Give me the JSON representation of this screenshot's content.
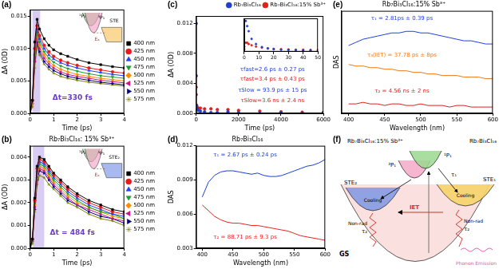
{
  "chart_data": [
    {
      "type": "line",
      "panel_label": "(a)",
      "xlabel": "Time (ps)",
      "ylabel": "ΔA (OD)",
      "x": [
        0,
        0.1,
        0.2,
        0.3,
        0.4,
        0.6,
        0.8,
        1.0,
        1.3,
        1.6,
        2.0,
        2.5,
        3.0,
        3.5,
        4.0
      ],
      "xlim": [
        0,
        4
      ],
      "xticks": [
        0,
        1,
        2,
        3,
        4
      ],
      "ylim": [
        0,
        0.016
      ],
      "yticks": [
        {
          "value": 0,
          "label": "0.000"
        },
        0.005,
        {
          "value": 0.01,
          "label": "0.010"
        },
        0.015
      ],
      "grid": false,
      "legend": "right",
      "shaded": {
        "x": [
          0.1,
          0.43
        ],
        "color": "#b49ae6"
      },
      "annotations": [
        {
          "text": "Δt=330 fs",
          "color": "#6a3cc0"
        }
      ],
      "inset_labels": [
        {
          "text": "¹P₁",
          "color": "#8fcf7f"
        },
        {
          "text": "³P₁",
          "color": "#f29cc4"
        },
        {
          "text": "STE",
          "color": "#f5b942"
        },
        {
          "text": "Eₐ",
          "color": "#c0392b"
        }
      ],
      "series": [
        {
          "name": "400 nm",
          "color": "#000000",
          "marker": "square",
          "values": [
            0,
            0.002,
            0.011,
            0.0145,
            0.013,
            0.0115,
            0.0105,
            0.0098,
            0.0092,
            0.0088,
            0.0083,
            0.0078,
            0.0075,
            0.0072,
            0.007
          ]
        },
        {
          "name": "425 nm",
          "color": "#e41a1c",
          "marker": "circle",
          "values": [
            0,
            0.002,
            0.01,
            0.0135,
            0.012,
            0.0105,
            0.0095,
            0.0088,
            0.0082,
            0.0078,
            0.0074,
            0.007,
            0.0067,
            0.0064,
            0.0062
          ]
        },
        {
          "name": "450 nm",
          "color": "#1f3fff",
          "marker": "triangle",
          "values": [
            0,
            0.002,
            0.01,
            0.013,
            0.0115,
            0.01,
            0.009,
            0.0084,
            0.0078,
            0.0074,
            0.007,
            0.0066,
            0.0063,
            0.006,
            0.0058
          ]
        },
        {
          "name": "475 nm",
          "color": "#1a9e2a",
          "marker": "triangle_down",
          "values": [
            0,
            0.002,
            0.009,
            0.0125,
            0.011,
            0.0095,
            0.0085,
            0.0079,
            0.0073,
            0.0069,
            0.0065,
            0.0061,
            0.0058,
            0.0056,
            0.0054
          ]
        },
        {
          "name": "500 nm",
          "color": "#ff8c00",
          "marker": "diamond",
          "values": [
            0,
            0.0015,
            0.009,
            0.012,
            0.0105,
            0.009,
            0.008,
            0.0074,
            0.0068,
            0.0064,
            0.006,
            0.0057,
            0.0054,
            0.0052,
            0.005
          ]
        },
        {
          "name": "525 nm",
          "color": "#c71585",
          "marker": "triangle_left",
          "values": [
            0,
            0.0015,
            0.008,
            0.0115,
            0.01,
            0.0085,
            0.0076,
            0.007,
            0.0064,
            0.006,
            0.0057,
            0.0054,
            0.0051,
            0.0049,
            0.0047
          ]
        },
        {
          "name": "550 nm",
          "color": "#000080",
          "marker": "triangle_right",
          "values": [
            0,
            0.0015,
            0.008,
            0.011,
            0.0095,
            0.008,
            0.0072,
            0.0066,
            0.0061,
            0.0057,
            0.0054,
            0.0051,
            0.0048,
            0.0046,
            0.0044
          ]
        },
        {
          "name": "575 nm",
          "color": "#808000",
          "marker": "star",
          "values": [
            0,
            0.001,
            0.007,
            0.0105,
            0.009,
            0.0076,
            0.0068,
            0.0062,
            0.0057,
            0.0054,
            0.0051,
            0.0048,
            0.0046,
            0.0044,
            0.0042
          ]
        }
      ]
    },
    {
      "type": "line",
      "panel_label": "(b)",
      "title": "Rb₇Bi₃Cl₁₆: 15% Sb³⁺",
      "xlabel": "Time (ps)",
      "ylabel": "ΔA (OD)",
      "x": [
        0,
        0.1,
        0.2,
        0.3,
        0.4,
        0.6,
        0.8,
        1.0,
        1.3,
        1.6,
        2.0,
        2.5,
        3.0,
        3.5,
        4.0
      ],
      "xlim": [
        0,
        4
      ],
      "xticks": [
        0,
        1,
        2,
        3,
        4
      ],
      "ylim": [
        0,
        0.0045
      ],
      "yticks": [
        {
          "value": 0,
          "label": "0.000"
        },
        0.001,
        0.002,
        0.003,
        0.004
      ],
      "grid": false,
      "legend": "right",
      "shaded": {
        "x": [
          0.12,
          0.6
        ],
        "color": "#b49ae6"
      },
      "annotations": [
        {
          "text": "Δt = 484 fs",
          "color": "#6a3cc0"
        }
      ],
      "inset_labels": [
        {
          "text": "¹P₁",
          "color": "#8fcf7f"
        },
        {
          "text": "³P₁",
          "color": "#f29cc4"
        },
        {
          "text": "STE₂",
          "color": "#5f7fe0"
        },
        {
          "text": "Eₐ",
          "color": "#c0392b"
        }
      ],
      "series": [
        {
          "name": "400 nm",
          "color": "#000000",
          "marker": "square",
          "values": [
            0,
            0.0004,
            0.0022,
            0.0036,
            0.004,
            0.0039,
            0.0036,
            0.0033,
            0.003,
            0.0027,
            0.0024,
            0.0021,
            0.0019,
            0.0017,
            0.0016
          ]
        },
        {
          "name": "425 nm",
          "color": "#e41a1c",
          "marker": "circle",
          "values": [
            0,
            0.0004,
            0.0021,
            0.0035,
            0.0039,
            0.0038,
            0.0035,
            0.0032,
            0.0029,
            0.0026,
            0.0023,
            0.002,
            0.0018,
            0.0016,
            0.0015
          ]
        },
        {
          "name": "450 nm",
          "color": "#1f3fff",
          "marker": "triangle",
          "values": [
            0,
            0.0004,
            0.0021,
            0.0034,
            0.0038,
            0.0037,
            0.0034,
            0.0031,
            0.0028,
            0.0025,
            0.0022,
            0.0019,
            0.0017,
            0.0015,
            0.0014
          ]
        },
        {
          "name": "475 nm",
          "color": "#1a9e2a",
          "marker": "triangle_down",
          "values": [
            0,
            0.0003,
            0.002,
            0.0033,
            0.0037,
            0.0036,
            0.0033,
            0.003,
            0.0027,
            0.0024,
            0.0021,
            0.0018,
            0.0016,
            0.0015,
            0.0013
          ]
        },
        {
          "name": "500 nm",
          "color": "#ff8c00",
          "marker": "diamond",
          "values": [
            0,
            0.0003,
            0.0019,
            0.0032,
            0.0036,
            0.0035,
            0.0032,
            0.0029,
            0.0026,
            0.0023,
            0.002,
            0.0018,
            0.0016,
            0.0014,
            0.0013
          ]
        },
        {
          "name": "525 nm",
          "color": "#c71585",
          "marker": "triangle_left",
          "values": [
            0,
            0.0003,
            0.0018,
            0.0031,
            0.0035,
            0.0034,
            0.0031,
            0.0028,
            0.0025,
            0.0022,
            0.0019,
            0.0017,
            0.0015,
            0.0013,
            0.0012
          ]
        },
        {
          "name": "550 nm",
          "color": "#000080",
          "marker": "triangle_right",
          "values": [
            0,
            0.0003,
            0.0017,
            0.003,
            0.0034,
            0.0033,
            0.003,
            0.0027,
            0.0024,
            0.0021,
            0.0019,
            0.0016,
            0.0014,
            0.0013,
            0.0011
          ]
        },
        {
          "name": "575 nm",
          "color": "#808000",
          "marker": "star",
          "values": [
            0,
            0.0002,
            0.0016,
            0.0028,
            0.0032,
            0.0031,
            0.0028,
            0.0026,
            0.0023,
            0.002,
            0.0018,
            0.0015,
            0.0013,
            0.0012,
            0.001
          ]
        }
      ]
    },
    {
      "type": "scatter",
      "panel_label": "(c)",
      "xlabel": "Time (ps)",
      "ylabel": "ΔA (OD)",
      "x": [
        1,
        5,
        20,
        50,
        100,
        200,
        400,
        700,
        1000,
        1500,
        2000,
        3000,
        4000,
        5000,
        6000
      ],
      "xlim": [
        0,
        6000
      ],
      "xticks": [
        0,
        2000,
        4000,
        6000
      ],
      "ylim": [
        0,
        0.013
      ],
      "yticks": [
        {
          "value": 0,
          "label": "0.000"
        },
        0.004,
        0.008,
        0.012
      ],
      "grid": false,
      "legend": "top",
      "annotations": [
        {
          "text": "τfast=2.6 ps ± 0.27 ps",
          "color": "#1f3fcf"
        },
        {
          "text": "τfast=3.4 ps ± 0.43 ps",
          "color": "#e0201b"
        },
        {
          "text": "τSlow = 93.9 ps ± 15 ps",
          "color": "#1f3fcf"
        },
        {
          "text": "τSlow=3.6 ns ± 2.4 ns",
          "color": "#e0201b"
        }
      ],
      "series": [
        {
          "name": "Rb₇Bi₃Cl₁₆",
          "color": "#1f3fcf",
          "marker": "circle",
          "values": [
            0.012,
            0.005,
            0.001,
            0.0006,
            0.0004,
            0.0003,
            0.0002,
            0.0001,
            0.0001,
            0.0002,
            0.0001,
            0,
            0.0001,
            0,
            0.0001
          ]
        },
        {
          "name": "Rb₇Bi₃Cl₁₆:15% Sb³⁺",
          "color": "#e0201b",
          "marker": "circle",
          "values": [
            0.0035,
            0.0025,
            0.0011,
            0.0008,
            0.0007,
            0.0007,
            0.0006,
            0.0006,
            0.0005,
            0.0005,
            0.0004,
            0.0003,
            0.0002,
            0.00015,
            0.0001
          ]
        }
      ],
      "inset": {
        "type": "scatter",
        "x": [
          0,
          1,
          2,
          3,
          5,
          8,
          12,
          16,
          20,
          25,
          30,
          35,
          40,
          45,
          50
        ],
        "xlim": [
          0,
          50
        ],
        "xticks": [
          0,
          10,
          20,
          30,
          40,
          50
        ],
        "ylim": [
          0,
          0.013
        ],
        "tick_labels": "x",
        "grid": false,
        "series": [
          {
            "color": "#1f3fcf",
            "marker": "circle",
            "values": [
              0.002,
              0.012,
              0.01,
              0.008,
              0.005,
              0.003,
              0.0018,
              0.0013,
              0.001,
              0.0008,
              0.0007,
              0.0006,
              0.0005,
              0.0005,
              0.0004
            ]
          },
          {
            "color": "#e0201b",
            "marker": "circle",
            "values": [
              0.001,
              0.0035,
              0.0035,
              0.003,
              0.0025,
              0.002,
              0.0016,
              0.0013,
              0.0011,
              0.001,
              0.0009,
              0.0008,
              0.0008,
              0.0007,
              0.0007
            ]
          }
        ]
      }
    },
    {
      "type": "line",
      "panel_label": "(d)",
      "title": "Rb₇Bi₃Cl₁₆",
      "xlabel": "Wavelength (nm)",
      "ylabel": "DAS",
      "x": [
        400,
        410,
        420,
        430,
        440,
        450,
        460,
        470,
        480,
        490,
        500,
        510,
        520,
        530,
        540,
        550,
        560,
        570,
        580,
        590,
        600
      ],
      "xlim": [
        390,
        600
      ],
      "xticks": [
        400,
        450,
        500,
        550,
        600
      ],
      "ylim": [
        0.003,
        0.012
      ],
      "yticks": [
        0.003,
        0.006,
        0.009,
        0.012
      ],
      "grid": false,
      "annotations": [
        {
          "text": "τ₁ = 2.67 ps ± 0.24 ps",
          "color": "#1a3fd6"
        },
        {
          "text": "τ₂ = 88.71 ps ± 9.3 ps",
          "color": "#e8231d"
        }
      ],
      "series": [
        {
          "name": "τ₁",
          "color": "#1a3fd6",
          "line_style": "solid",
          "values": [
            0.0075,
            0.0088,
            0.0094,
            0.0097,
            0.0098,
            0.0098,
            0.0097,
            0.0096,
            0.0095,
            0.0096,
            0.0094,
            0.0093,
            0.0093,
            0.0094,
            0.0096,
            0.0098,
            0.01,
            0.0102,
            0.0103,
            0.0105,
            0.0108
          ]
        },
        {
          "name": "τ₂",
          "color": "#e8231d",
          "line_style": "solid",
          "values": [
            0.0068,
            0.0063,
            0.0058,
            0.0055,
            0.0053,
            0.0052,
            0.0052,
            0.0051,
            0.005,
            0.005,
            0.0049,
            0.0048,
            0.0047,
            0.0046,
            0.0045,
            0.0043,
            0.0041,
            0.004,
            0.0039,
            0.0038,
            0.0037
          ]
        }
      ]
    },
    {
      "type": "line",
      "panel_label": "(e)",
      "title": "Rb₇Bi₃Cl₁₆:15% Sb³⁺",
      "xlabel": "Wavelength (nm)",
      "ylabel": "DAS",
      "x": [
        400,
        410,
        420,
        430,
        440,
        450,
        460,
        470,
        480,
        490,
        500,
        510,
        520,
        530,
        540,
        550,
        560,
        570,
        580,
        590,
        600
      ],
      "xlim": [
        390,
        600
      ],
      "xticks": [
        400,
        450,
        500,
        550,
        600
      ],
      "ylim": [
        0,
        0.0065
      ],
      "tick_labels": "x",
      "grid": false,
      "annotations": [
        {
          "text": "τ₁ = 2.81ps ± 0.39 ps",
          "color": "#2040e0"
        },
        {
          "text": "τ₃(IET) = 37.78 ps ± 8ps",
          "color": "#f07a1a"
        },
        {
          "text": "τ₂ = 4.56 ns ± 2 ns",
          "color": "#e02020"
        }
      ],
      "series": [
        {
          "name": "τ₁",
          "color": "#2040e0",
          "line_style": "solid",
          "values": [
            0.0043,
            0.0045,
            0.0047,
            0.0048,
            0.0049,
            0.005,
            0.0051,
            0.0051,
            0.0052,
            0.0052,
            0.0051,
            0.0051,
            0.005,
            0.0049,
            0.0048,
            0.0047,
            0.0046,
            0.0046,
            0.0045,
            0.0044,
            0.0044
          ]
        },
        {
          "name": "τ₃(IET)",
          "color": "#f07a1a",
          "line_style": "solid",
          "values": [
            0.0031,
            0.003,
            0.003,
            0.0029,
            0.0029,
            0.0028,
            0.0028,
            0.0027,
            0.0027,
            0.0026,
            0.0026,
            0.0025,
            0.0025,
            0.0024,
            0.0024,
            0.0024,
            0.0023,
            0.0023,
            0.0023,
            0.0022,
            0.0022
          ]
        },
        {
          "name": "τ₂",
          "color": "#e02020",
          "line_style": "solid",
          "values": [
            0.0006,
            0.0006,
            0.0007,
            0.0006,
            0.0006,
            0.0005,
            0.0006,
            0.0006,
            0.0005,
            0.0005,
            0.0006,
            0.0005,
            0.0005,
            0.0005,
            0.0004,
            0.0005,
            0.0005,
            0.0004,
            0.0004,
            0.0004,
            0.0004
          ]
        }
      ]
    }
  ],
  "diagram": {
    "panel_label": "(f)",
    "left_title": "Rb₇Bi₃Cl₁₆:15% Sb³⁺",
    "right_title": "Rb₇Bi₃Cl₁₆",
    "singlet": "¹P₁",
    "triplet": "³P₁",
    "ste_left": "STE₂",
    "ste_right": "STE₁",
    "ground": "GS",
    "cooling_left": "Cooling",
    "cooling_right": "Cooling",
    "transfer": "IET",
    "excitation_decay": "τ₁",
    "nonrad_left": "Non-rad",
    "nonrad_left_time": "τ₂",
    "nonrad_right": "Non-rad",
    "nonrad_right_time": "τ₂",
    "phonon": "Phonon Emission"
  }
}
